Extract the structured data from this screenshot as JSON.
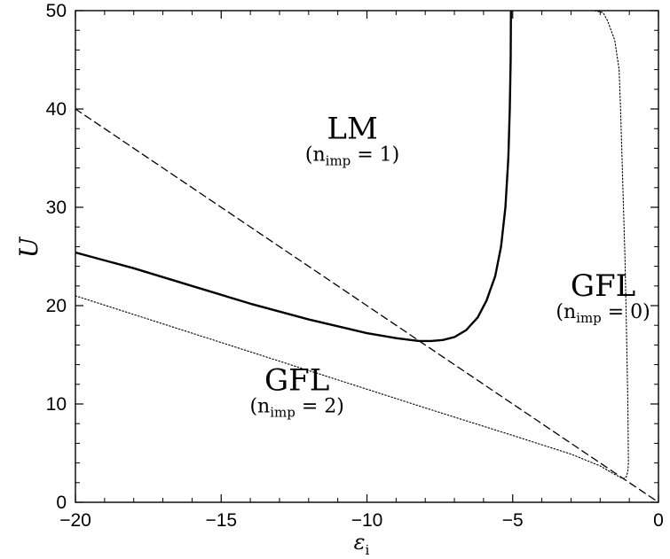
{
  "chart_data": {
    "type": "line",
    "xlabel": "ε",
    "xlabel_subscript": "i",
    "ylabel": "U",
    "xlim": [
      -20,
      0
    ],
    "ylim": [
      0,
      50
    ],
    "x_ticks": [
      -20,
      -15,
      -10,
      -5,
      0
    ],
    "x_tick_labels": [
      "−20",
      "−15",
      "−10",
      "−5",
      "0"
    ],
    "y_ticks": [
      0,
      10,
      20,
      30,
      40,
      50
    ],
    "y_tick_labels": [
      "0",
      "10",
      "20",
      "30",
      "40",
      "50"
    ],
    "grid": false,
    "series": [
      {
        "style": "solid",
        "x": [
          -20,
          -18,
          -16,
          -14,
          -12,
          -10,
          -9,
          -8.5,
          -8.2,
          -7.8,
          -7.4,
          -7.0,
          -6.6,
          -6.2,
          -5.9,
          -5.6,
          -5.4,
          -5.25,
          -5.15,
          -5.1,
          -5.07,
          -5.06
        ],
        "y": [
          25.4,
          23.8,
          22.0,
          20.2,
          18.6,
          17.2,
          16.7,
          16.5,
          16.4,
          16.4,
          16.5,
          16.8,
          17.5,
          18.8,
          20.5,
          23.0,
          26.0,
          30.0,
          35.0,
          40.0,
          45.0,
          50.0
        ]
      },
      {
        "style": "dashed",
        "x": [
          -20,
          0
        ],
        "y": [
          40,
          0
        ]
      },
      {
        "style": "dotted",
        "x": [
          -20,
          -16,
          -12,
          -8,
          -5,
          -3,
          -2,
          -1.6,
          -1.35,
          -1.2,
          -1.1,
          -1.05,
          -1.03,
          -1.05,
          -1.1,
          -1.15,
          -1.2,
          -1.25,
          -1.3,
          -1.35,
          -1.5,
          -1.75,
          -1.9,
          -2.2
        ],
        "y": [
          21.0,
          17.2,
          13.4,
          9.6,
          6.8,
          4.9,
          3.7,
          3.0,
          2.6,
          2.4,
          2.6,
          3.2,
          4.0,
          10.0,
          18.0,
          25.0,
          30.0,
          35.0,
          40.0,
          44.0,
          47.0,
          49.0,
          49.8,
          50.0
        ]
      }
    ],
    "annotations": [
      {
        "id": "lm",
        "main": "LM",
        "sub_prefix": "(n",
        "sub_script": "imp",
        "sub_suffix": " = 1)",
        "x": -10.5,
        "y": 37.0
      },
      {
        "id": "gfl0",
        "main": "GFL",
        "sub_prefix": "(n",
        "sub_script": "imp",
        "sub_suffix": " = 0)",
        "x": -1.9,
        "y": 21.0
      },
      {
        "id": "gfl2",
        "main": "GFL",
        "sub_prefix": "(n",
        "sub_script": "imp",
        "sub_suffix": " = 2)",
        "x": -12.4,
        "y": 11.4
      }
    ]
  }
}
